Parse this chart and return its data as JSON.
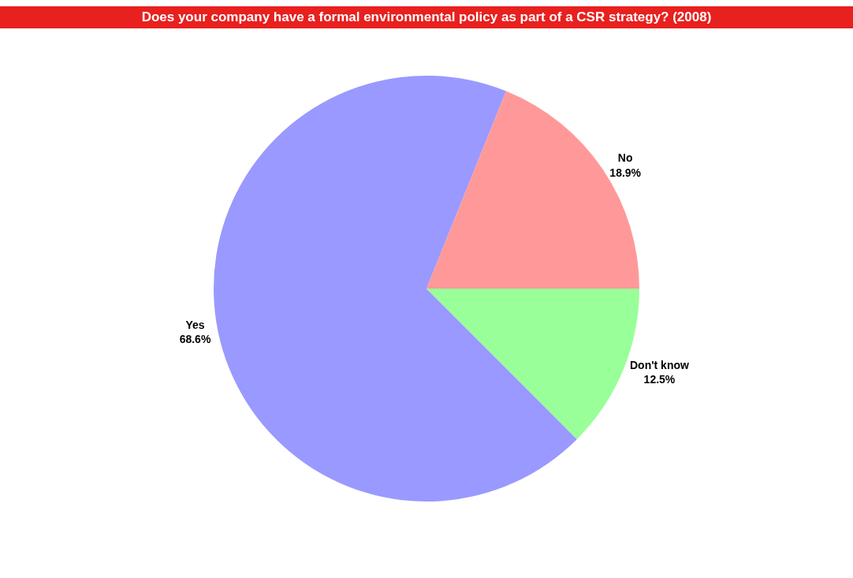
{
  "chart_data": {
    "type": "pie",
    "title": "Does your company have a formal environmental policy as part of a CSR strategy? (2008)",
    "categories": [
      "Yes",
      "No",
      "Don't know"
    ],
    "values": [
      68.6,
      18.9,
      12.5
    ],
    "value_labels": [
      "68.6%",
      "18.9%",
      "12.5%"
    ],
    "colors": [
      "#9999ff",
      "#ff9999",
      "#99ff99"
    ],
    "legend": false
  }
}
